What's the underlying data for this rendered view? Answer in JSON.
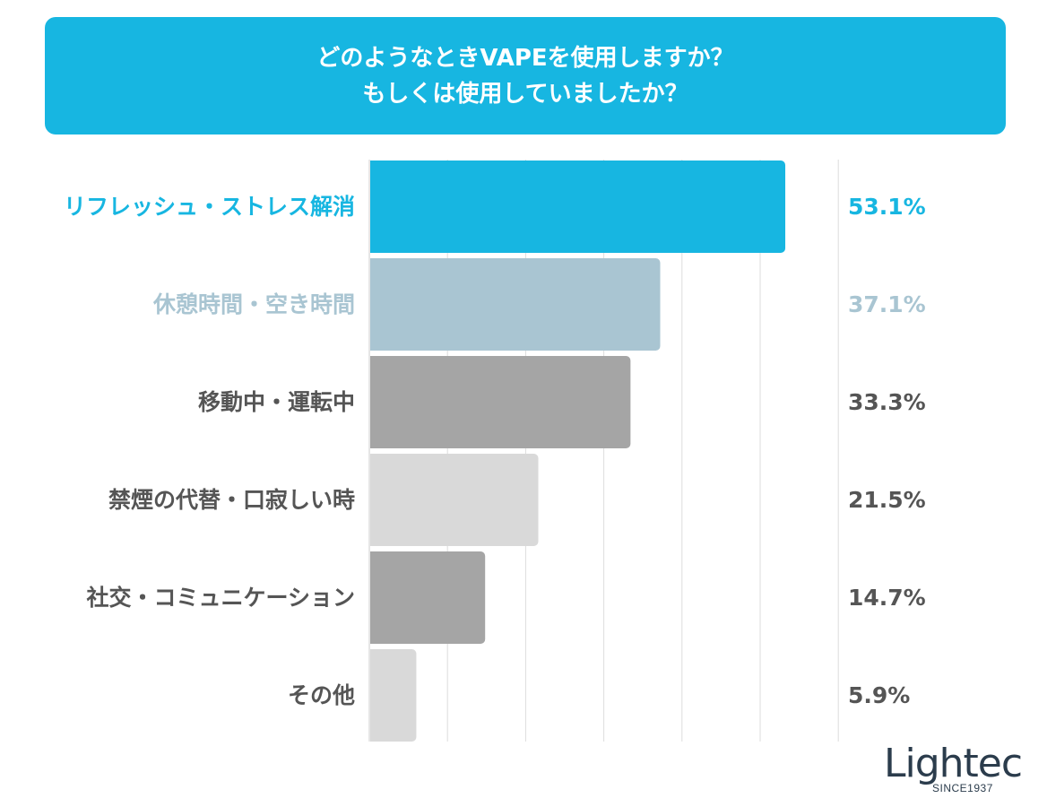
{
  "title_lines": [
    "どのようなときVAPEを使用しますか？",
    "もしくは使用していましたか？"
  ],
  "chart_data": {
    "type": "bar",
    "orientation": "horizontal",
    "title": "どのようなときVAPEを使用しますか？ もしくは使用していましたか？",
    "categories": [
      "リフレッシュ・ストレス解消",
      "休憩時間・空き時間",
      "移動中・運転中",
      "禁煙の代替・口寂しい時",
      "社交・コミュニケーション",
      "その他"
    ],
    "values": [
      53.1,
      37.1,
      33.3,
      21.5,
      14.7,
      5.9
    ],
    "value_labels": [
      "53.1%",
      "37.1%",
      "33.3%",
      "21.5%",
      "14.7%",
      "5.9%"
    ],
    "bar_colors": [
      "#17b6e1",
      "#a9c5d2",
      "#a5a5a5",
      "#d9d9d9",
      "#a5a5a5",
      "#d9d9d9"
    ],
    "label_colors": [
      "#17b6e1",
      "#a9c5d2",
      "#555555",
      "#555555",
      "#555555",
      "#555555"
    ],
    "xlim": [
      0,
      60
    ],
    "grid": true
  },
  "logo": {
    "word": "Lightec",
    "sub": "SINCE1937"
  }
}
